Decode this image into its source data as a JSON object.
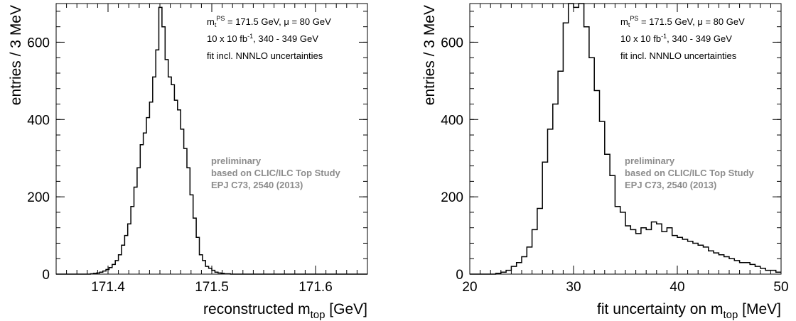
{
  "chart_data": [
    {
      "type": "histogram",
      "xlabel_main": "reconstructed m",
      "xlabel_sub": "top",
      "xlabel_unit": " [GeV]",
      "ylabel": "entries / 3 MeV",
      "xlim": [
        171.35,
        171.65
      ],
      "ylim": [
        0,
        700
      ],
      "xticks": [
        171.4,
        171.5,
        171.6
      ],
      "xtick_labels": [
        "171.4",
        "171.5",
        "171.6"
      ],
      "yticks": [
        0,
        200,
        400,
        600
      ],
      "ytick_labels": [
        "0",
        "200",
        "400",
        "600"
      ],
      "bin_width": 0.003,
      "bin_start": 171.35,
      "values": [
        0,
        0,
        0,
        0,
        0,
        0,
        0,
        0,
        0,
        0,
        0,
        1,
        2,
        3,
        5,
        8,
        12,
        17,
        25,
        35,
        50,
        75,
        100,
        130,
        175,
        225,
        275,
        335,
        365,
        405,
        445,
        510,
        580,
        690,
        640,
        555,
        510,
        490,
        450,
        425,
        375,
        325,
        275,
        205,
        145,
        95,
        50,
        35,
        20,
        15,
        10,
        5,
        3,
        2,
        1,
        1,
        0,
        0,
        0,
        0,
        0,
        0,
        0,
        0,
        0,
        0,
        0,
        0,
        0,
        0,
        0,
        0,
        0,
        0,
        0,
        0,
        0,
        0,
        0,
        0,
        0,
        0,
        0,
        0,
        0,
        0,
        0,
        0,
        0,
        0,
        0,
        0,
        0,
        0,
        0,
        0,
        0,
        0,
        0,
        0
      ],
      "annotation": {
        "line1_pre": "m",
        "line1_sub": "t",
        "line1_sup": "PS",
        "line1_post": " = 171.5 GeV, μ = 80 GeV",
        "line2_pre": "10 x 10 fb",
        "line2_sup": "-1",
        "line2_post": ", 340 - 349 GeV",
        "line3": "fit incl. NNNLO uncertainties"
      },
      "watermark": [
        "preliminary",
        "based on CLIC/ILC Top Study",
        "EPJ C73, 2540 (2013)"
      ]
    },
    {
      "type": "histogram",
      "xlabel_main": "fit uncertainty on m",
      "xlabel_sub": "top",
      "xlabel_unit": " [MeV]",
      "ylabel": "entries / 3 MeV",
      "xlim": [
        20,
        50
      ],
      "ylim": [
        0,
        700
      ],
      "xticks": [
        20,
        30,
        40,
        50
      ],
      "xtick_labels": [
        "20",
        "30",
        "40",
        "50"
      ],
      "yticks": [
        0,
        200,
        400,
        600
      ],
      "ytick_labels": [
        "0",
        "200",
        "400",
        "600"
      ],
      "bin_width": 0.5,
      "bin_start": 20,
      "values": [
        0,
        0,
        0,
        0,
        0,
        2,
        5,
        10,
        20,
        30,
        45,
        70,
        115,
        170,
        290,
        375,
        440,
        525,
        650,
        700,
        690,
        700,
        640,
        560,
        475,
        395,
        310,
        255,
        175,
        160,
        125,
        115,
        105,
        120,
        115,
        135,
        130,
        110,
        120,
        100,
        95,
        90,
        85,
        80,
        75,
        70,
        60,
        55,
        50,
        45,
        40,
        35,
        30,
        30,
        25,
        20,
        15,
        10,
        10,
        5,
        10,
        10
      ],
      "annotation": {
        "line1_pre": "m",
        "line1_sub": "t",
        "line1_sup": "PS",
        "line1_post": " = 171.5 GeV, μ = 80 GeV",
        "line2_pre": "10 x 10 fb",
        "line2_sup": "-1",
        "line2_post": ", 340 - 349 GeV",
        "line3": "fit incl. NNNLO uncertainties"
      },
      "watermark": [
        "preliminary",
        "based on CLIC/ILC Top Study",
        "EPJ C73, 2540 (2013)"
      ]
    }
  ]
}
